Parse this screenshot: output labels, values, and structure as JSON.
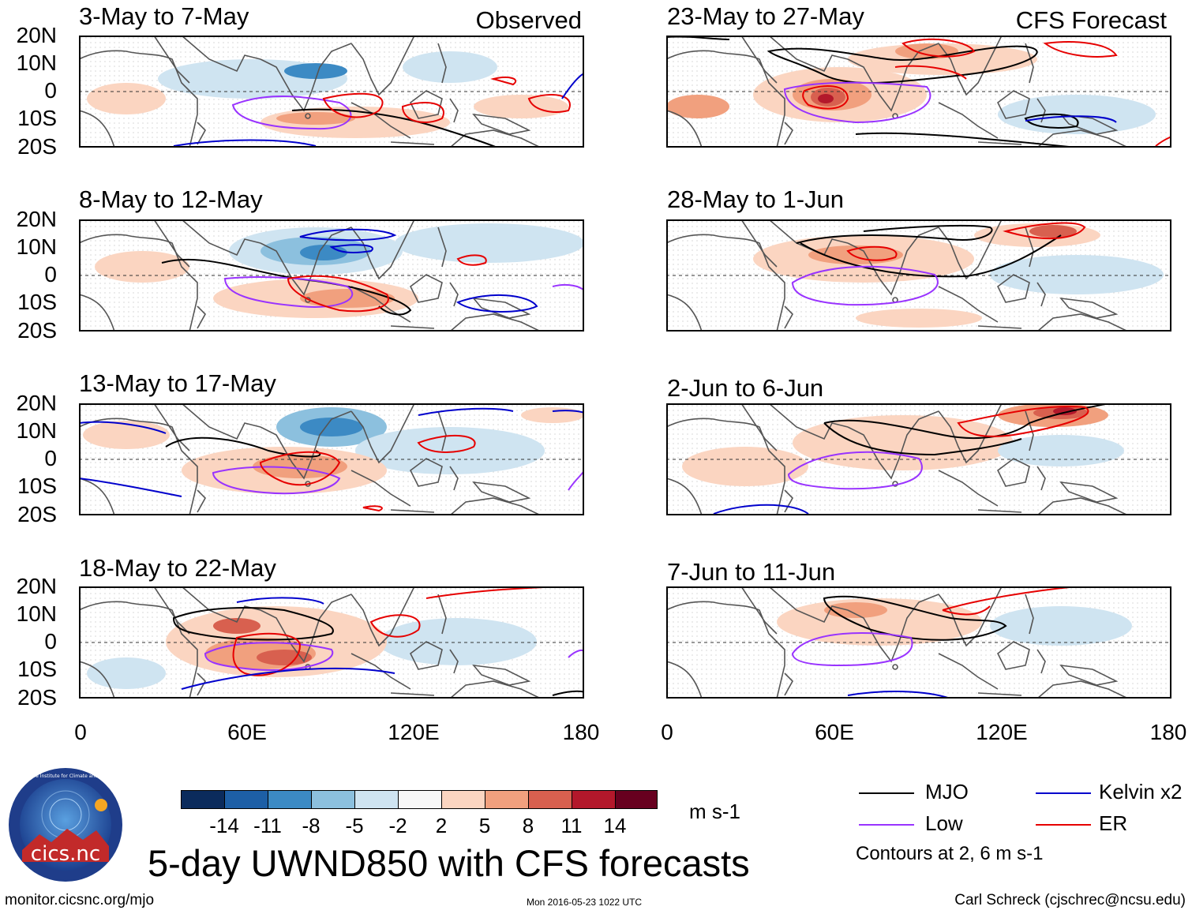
{
  "panels": {
    "observed": [
      {
        "title": "3-May to 7-May",
        "tag": "Observed"
      },
      {
        "title": "8-May to 12-May"
      },
      {
        "title": "13-May to 17-May"
      },
      {
        "title": "18-May to 22-May"
      }
    ],
    "forecast": [
      {
        "title": "23-May to 27-May",
        "tag": "CFS Forecast"
      },
      {
        "title": "28-May to 1-Jun"
      },
      {
        "title": "2-Jun to 6-Jun"
      },
      {
        "title": "7-Jun to 11-Jun"
      }
    ]
  },
  "axes": {
    "y_ticks": [
      "20N",
      "10N",
      "0",
      "10S",
      "20S"
    ],
    "x_ticks": [
      "0",
      "60E",
      "120E",
      "180"
    ]
  },
  "colorbar": {
    "labels": [
      "-14",
      "-11",
      "-8",
      "-5",
      "-2",
      "2",
      "5",
      "8",
      "11",
      "14"
    ],
    "colors": [
      "#0b2b5c",
      "#1d5fa6",
      "#3c8ac4",
      "#8cc0de",
      "#cfe4f1",
      "#f7f7f7",
      "#fbd5c1",
      "#f1a07e",
      "#d8604f",
      "#b3182b",
      "#67001f"
    ],
    "units": "m s-1"
  },
  "legend": {
    "items": [
      {
        "label": "MJO",
        "color": "#000000"
      },
      {
        "label": "Kelvin x2",
        "color": "#0000cc"
      },
      {
        "label": "Low",
        "color": "#9933ff"
      },
      {
        "label": "ER",
        "color": "#e60000"
      }
    ],
    "note": "Contours at 2, 6 m s-1"
  },
  "main_title": "5-day UWND850 with CFS forecasts",
  "logo_text": "cics.nc",
  "logo_ring_text": "Cooperative Institute for Climate and Satellites",
  "footer": {
    "left": "monitor.cicsnc.org/mjo",
    "center": "Mon 2016-05-23 1022 UTC",
    "right": "Carl Schreck (cjschrec@ncsu.edu)"
  }
}
